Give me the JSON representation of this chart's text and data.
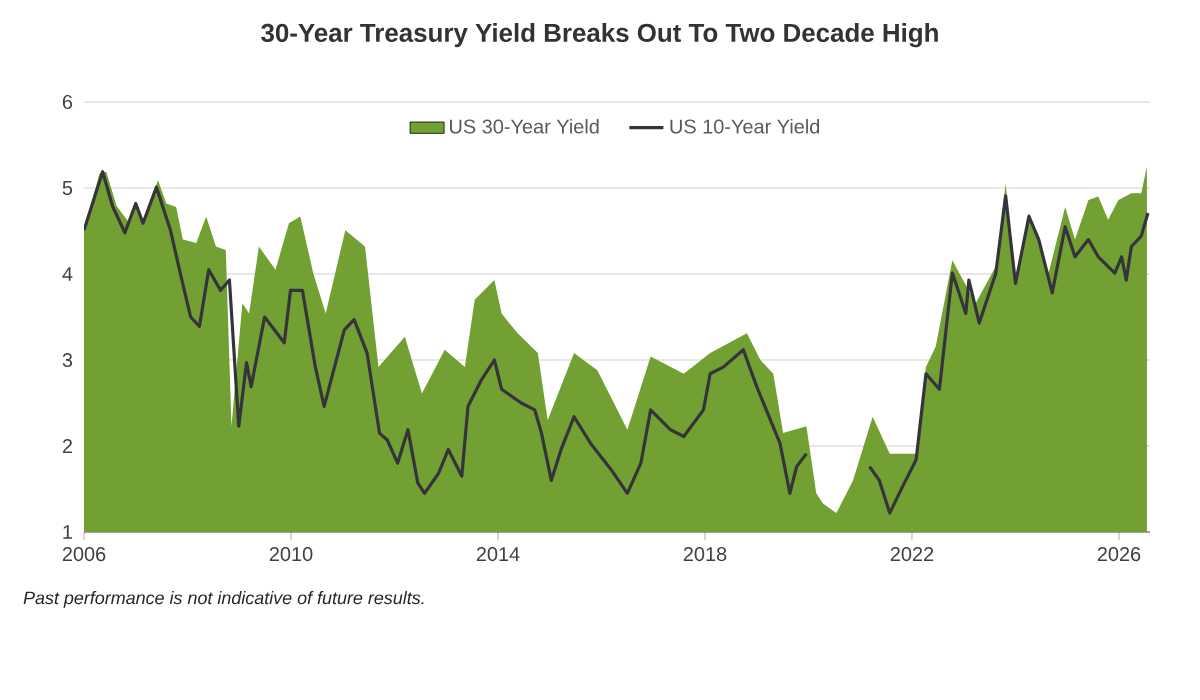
{
  "chart_data": {
    "type": "area",
    "title": "30-Year Treasury Yield Breaks Out To Two Decade High",
    "xlim": [
      2006,
      2026.6
    ],
    "xticks": [
      2006,
      2010,
      2014,
      2018,
      2022,
      2026
    ],
    "ylim": [
      1,
      6
    ],
    "yticks": [
      1,
      2,
      3,
      4,
      5,
      6
    ],
    "grid": "y",
    "legend": "top",
    "marker": "none",
    "annotations": [
      "Past performance is not indicative of future results."
    ],
    "series": [
      {
        "name": "US 30-Year Yield",
        "type": "area",
        "color": "#72a032",
        "x": [
          2006.0,
          2006.3,
          2006.43,
          2006.63,
          2006.88,
          2007.0,
          2007.14,
          2007.43,
          2007.59,
          2007.78,
          2007.91,
          2008.17,
          2008.36,
          2008.55,
          2008.74,
          2008.85,
          2009.06,
          2009.19,
          2009.38,
          2009.7,
          2009.96,
          2010.18,
          2010.43,
          2010.67,
          2011.05,
          2011.43,
          2011.69,
          2012.2,
          2012.53,
          2012.97,
          2013.36,
          2013.55,
          2013.93,
          2014.07,
          2014.38,
          2014.77,
          2014.96,
          2015.47,
          2015.92,
          2016.5,
          2016.95,
          2017.59,
          2018.1,
          2018.81,
          2019.07,
          2019.32,
          2019.51,
          2019.96,
          2020.15,
          2020.28,
          2020.54,
          2020.86,
          2021.24,
          2021.57,
          2022.08,
          2022.27,
          2022.46,
          2022.78,
          2023.23,
          2023.62,
          2023.81,
          2024.0,
          2024.26,
          2024.64,
          2024.96,
          2025.15,
          2025.41,
          2025.6,
          2025.79,
          2025.99,
          2026.24,
          2026.43,
          2026.54
        ],
        "values": [
          4.51,
          5.17,
          5.19,
          4.79,
          4.59,
          4.82,
          4.63,
          5.09,
          4.82,
          4.78,
          4.4,
          4.36,
          4.67,
          4.32,
          4.28,
          2.23,
          3.66,
          3.54,
          4.32,
          4.05,
          4.59,
          4.67,
          4.01,
          3.54,
          4.51,
          4.32,
          2.92,
          3.27,
          2.61,
          3.12,
          2.92,
          3.7,
          3.93,
          3.54,
          3.31,
          3.08,
          2.3,
          3.08,
          2.88,
          2.19,
          3.04,
          2.84,
          3.08,
          3.31,
          3.0,
          2.84,
          2.15,
          2.23,
          1.45,
          1.33,
          1.22,
          1.6,
          2.34,
          1.91,
          1.91,
          2.92,
          3.16,
          4.16,
          3.66,
          4.09,
          5.05,
          3.93,
          4.71,
          4.01,
          4.78,
          4.4,
          4.86,
          4.9,
          4.63,
          4.86,
          4.94,
          4.94,
          5.25
        ]
      },
      {
        "name": "US 10-Year Yield",
        "type": "line",
        "color": "#34343a",
        "x": [
          2006.0,
          2006.36,
          2006.55,
          2006.79,
          2007.0,
          2007.14,
          2007.4,
          2007.67,
          2007.86,
          2008.06,
          2008.23,
          2008.41,
          2008.64,
          2008.81,
          2008.99,
          2009.14,
          2009.23,
          2009.49,
          2009.87,
          2009.99,
          2010.22,
          2010.47,
          2010.64,
          2011.03,
          2011.22,
          2011.47,
          2011.71,
          2011.86,
          2012.06,
          2012.26,
          2012.45,
          2012.58,
          2012.85,
          2013.04,
          2013.3,
          2013.42,
          2013.68,
          2013.93,
          2014.07,
          2014.45,
          2014.71,
          2014.84,
          2015.03,
          2015.22,
          2015.47,
          2015.79,
          2016.18,
          2016.5,
          2016.76,
          2016.95,
          2017.33,
          2017.59,
          2017.97,
          2018.1,
          2018.36,
          2018.74,
          2019.0,
          2019.45,
          2019.64,
          2019.77,
          2019.96,
          2020.15,
          2020.6,
          2021.05,
          2021.18,
          2021.37,
          2021.57,
          2021.82,
          2022.08,
          2022.27,
          2022.53,
          2022.78,
          2022.91,
          2023.04,
          2023.1,
          2023.3,
          2023.62,
          2023.81,
          2024.0,
          2024.26,
          2024.45,
          2024.71,
          2024.96,
          2025.15,
          2025.41,
          2025.6,
          2025.92,
          2026.05,
          2026.14,
          2026.24,
          2026.43,
          2026.56
        ],
        "values": [
          4.51,
          5.19,
          4.79,
          4.48,
          4.82,
          4.59,
          5.01,
          4.51,
          4.01,
          3.5,
          3.39,
          4.05,
          3.81,
          3.93,
          2.23,
          2.97,
          2.69,
          3.5,
          3.2,
          3.81,
          3.81,
          2.92,
          2.46,
          3.35,
          3.47,
          3.08,
          2.15,
          2.07,
          1.8,
          2.19,
          1.57,
          1.45,
          1.68,
          1.96,
          1.65,
          2.46,
          2.77,
          3.0,
          2.66,
          2.5,
          2.42,
          2.15,
          1.6,
          1.96,
          2.34,
          2.03,
          1.73,
          1.45,
          1.8,
          2.42,
          2.19,
          2.11,
          2.42,
          2.84,
          2.92,
          3.12,
          2.69,
          2.03,
          1.45,
          1.76,
          1.91,
          null,
          null,
          null,
          1.76,
          1.6,
          1.22,
          1.53,
          1.84,
          2.84,
          2.66,
          4.01,
          3.78,
          3.54,
          3.93,
          3.43,
          4.01,
          4.91,
          3.89,
          4.67,
          4.4,
          3.78,
          4.55,
          4.2,
          4.4,
          4.2,
          4.01,
          4.2,
          3.93,
          4.32,
          4.44,
          4.71
        ]
      }
    ]
  }
}
